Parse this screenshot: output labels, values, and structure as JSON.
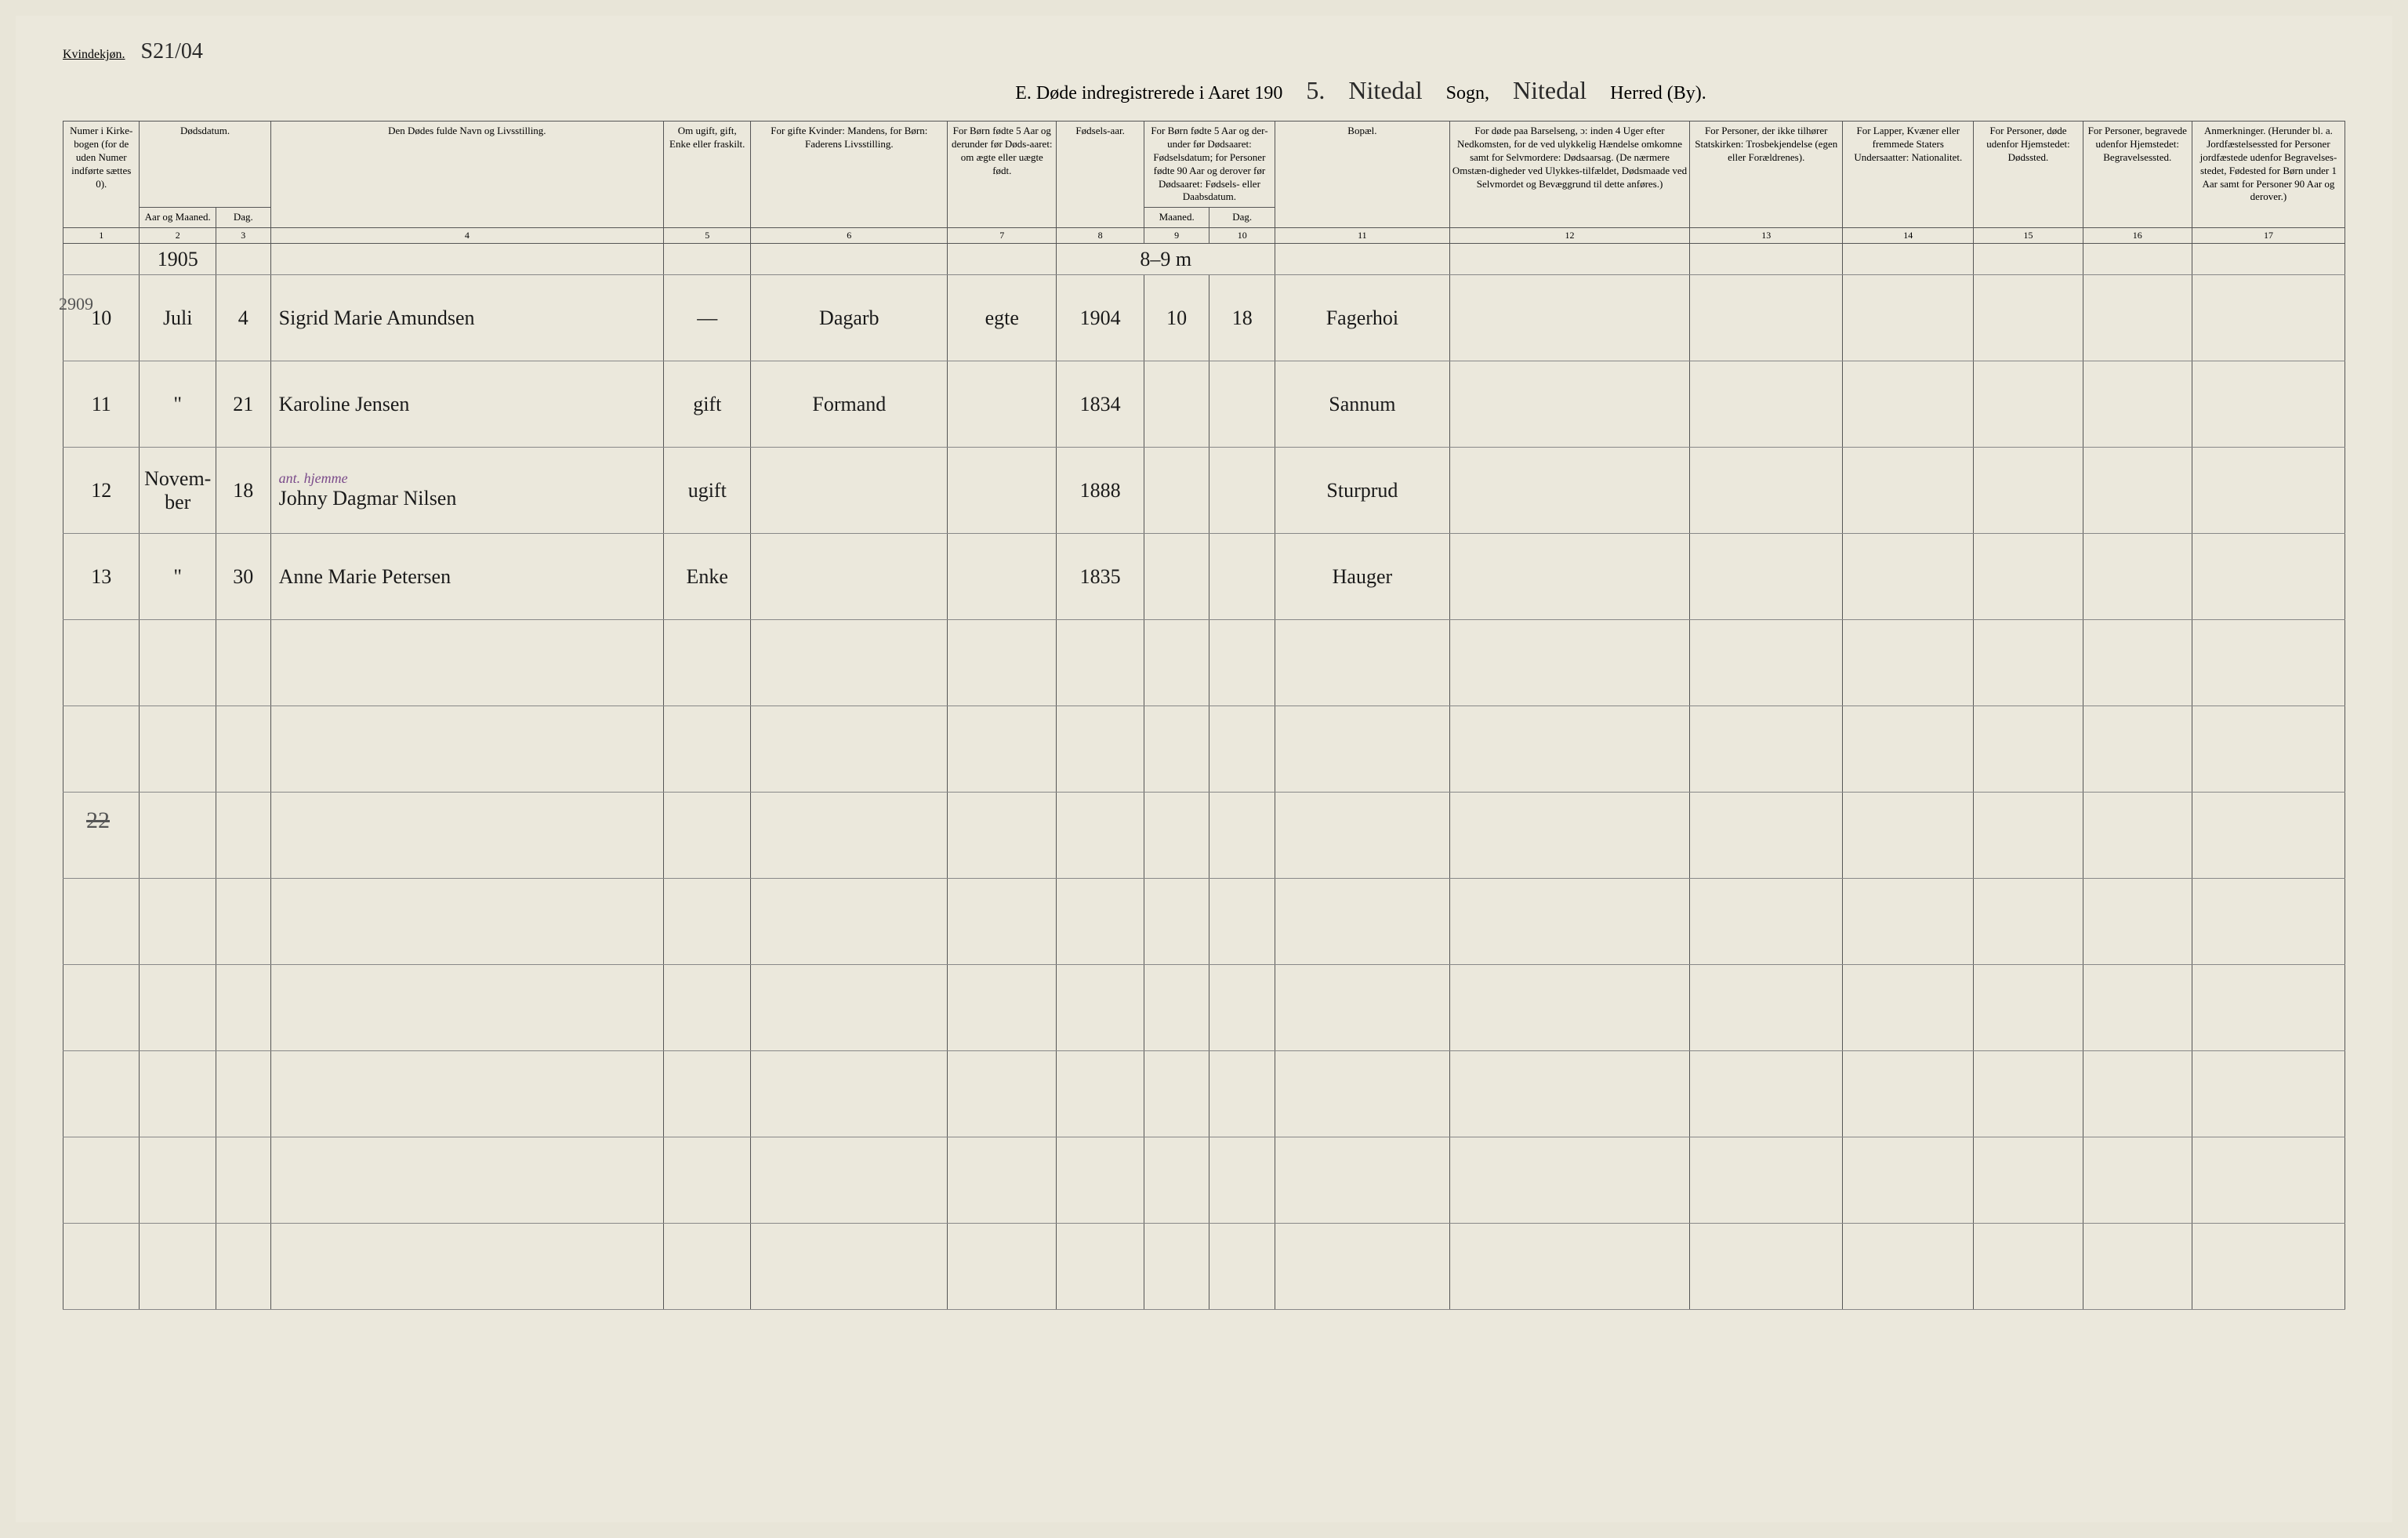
{
  "header": {
    "gender_label": "Kvindekjøn.",
    "gender_note": "S21/04",
    "title_prefix": "E.   Døde indregistrerede i Aaret 190",
    "year_suffix": "5.",
    "parish_hand": "Nitedal",
    "parish_label": "Sogn,",
    "district_hand": "Nitedal",
    "district_label": "Herred (By)."
  },
  "columns": {
    "c1": "Numer i Kirke-bogen (for de uden Numer indførte sættes 0).",
    "c2_3": "Dødsdatum.",
    "c2": "Aar og Maaned.",
    "c3": "Dag.",
    "c4": "Den Dødes fulde Navn og Livsstilling.",
    "c5": "Om ugift, gift, Enke eller fraskilt.",
    "c6": "For gifte Kvinder: Mandens, for Børn: Faderens Livsstilling.",
    "c7": "For Børn fødte 5 Aar og derunder før Døds-aaret: om ægte eller uægte født.",
    "c8": "Fødsels-aar.",
    "c9_10": "For Børn fødte 5 Aar og der-under før Dødsaaret: Fødselsdatum; for Personer fødte 90 Aar og derover før Dødsaaret: Fødsels- eller Daabsdatum.",
    "c9": "Maaned.",
    "c10": "Dag.",
    "c11": "Bopæl.",
    "c12": "For døde paa Barselseng, ɔ: inden 4 Uger efter Nedkomsten, for de ved ulykkelig Hændelse omkomne samt for Selvmordere: Dødsaarsag. (De nærmere Omstæn-digheder ved Ulykkes-tilfældet, Dødsmaade ved Selvmordet og Bevæggrund til dette anføres.)",
    "c13": "For Personer, der ikke tilhører Statskirken: Trosbekjendelse (egen eller Forældrenes).",
    "c14": "For Lapper, Kvæner eller fremmede Staters Undersaatter: Nationalitet.",
    "c15": "For Personer, døde udenfor Hjemstedet: Dødssted.",
    "c16": "For Personer, begravede udenfor Hjemstedet: Begravelsessted.",
    "c17": "Anmerkninger. (Herunder bl. a. Jordfæstelsessted for Personer jordfæstede udenfor Begravelses-stedet, Fødested for Børn under 1 Aar samt for Personer 90 Aar og derover.)"
  },
  "colnums": [
    "1",
    "2",
    "3",
    "4",
    "5",
    "6",
    "7",
    "8",
    "9",
    "10",
    "11",
    "12",
    "13",
    "14",
    "15",
    "16",
    "17"
  ],
  "margin": {
    "top_year": "2909",
    "year_cell": "1905",
    "age_note": "8–9 m",
    "tally": "22"
  },
  "rows": [
    {
      "num": "10",
      "month": "Juli",
      "day": "4",
      "name": "Sigrid Marie Amundsen",
      "status": "—",
      "father": "Dagarb",
      "legit": "egte",
      "birthyear": "1904",
      "bm": "10",
      "bd": "18",
      "residence": "Fagerhoi"
    },
    {
      "num": "11",
      "month": "\"",
      "day": "21",
      "name": "Karoline Jensen",
      "status": "gift",
      "father": "Formand",
      "legit": "",
      "birthyear": "1834",
      "bm": "",
      "bd": "",
      "residence": "Sannum"
    },
    {
      "num": "12",
      "month": "Novem-ber",
      "day": "18",
      "name": "Johny Dagmar Nilsen",
      "status": "ugift",
      "father": "",
      "legit": "",
      "birthyear": "1888",
      "bm": "",
      "bd": "",
      "residence": "Sturprud",
      "annotation": "ant. hjemme"
    },
    {
      "num": "13",
      "month": "\"",
      "day": "30",
      "name": "Anne Marie Petersen",
      "status": "Enke",
      "father": "",
      "legit": "",
      "birthyear": "1835",
      "bm": "",
      "bd": "",
      "residence": "Hauger"
    }
  ],
  "styling": {
    "page_bg": "#ebe8dc",
    "ink": "#1a1a1a",
    "rule_color": "#555555",
    "annotation_color": "#7a4a8a",
    "col_widths_pct": [
      3.5,
      3.5,
      2.5,
      18,
      4,
      9,
      5,
      4,
      3,
      3,
      8,
      11,
      7,
      6,
      5,
      5,
      7
    ],
    "header_fontsize": 13,
    "data_fontsize": 26,
    "title_fontsize": 24
  }
}
